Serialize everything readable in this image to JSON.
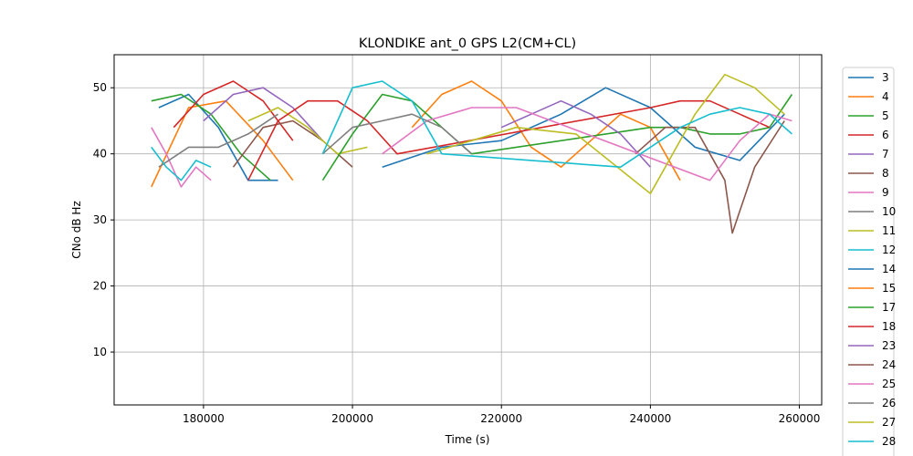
{
  "chart_data": {
    "type": "line",
    "title": "KLONDIKE ant_0 GPS L2(CM+CL)",
    "xlabel": "Time (s)",
    "ylabel": "CNo dB Hz",
    "xlim": [
      168000,
      263000
    ],
    "ylim": [
      2,
      55
    ],
    "xticks": [
      180000,
      200000,
      220000,
      240000,
      260000
    ],
    "yticks": [
      10,
      20,
      30,
      40,
      50
    ],
    "grid": true,
    "legend_position": "outside-right",
    "series": [
      {
        "name": "3",
        "color": "#1f77b4",
        "x": [
          174000,
          178000,
          182000,
          186000,
          190000
        ],
        "y": [
          47,
          49,
          44,
          36,
          36
        ]
      },
      {
        "name": "4",
        "color": "#ff7f0e",
        "x": [
          173000,
          178000,
          183000,
          188000,
          192000
        ],
        "y": [
          35,
          47,
          48,
          42,
          36
        ]
      },
      {
        "name": "5",
        "color": "#2ca02c",
        "x": [
          173000,
          177000,
          181000,
          185000,
          189000
        ],
        "y": [
          48,
          49,
          46,
          40,
          36
        ]
      },
      {
        "name": "6",
        "color": "#d62728",
        "x": [
          176000,
          180000,
          184000,
          188000,
          192000
        ],
        "y": [
          44,
          49,
          51,
          48,
          42
        ]
      },
      {
        "name": "7",
        "color": "#9467bd",
        "x": [
          180000,
          184000,
          188000,
          192000,
          196000
        ],
        "y": [
          45,
          49,
          50,
          47,
          42
        ]
      },
      {
        "name": "8",
        "color": "#8c564b",
        "x": [
          184000,
          188000,
          192000,
          196000,
          200000
        ],
        "y": [
          38,
          44,
          45,
          42,
          38
        ]
      },
      {
        "name": "9",
        "color": "#e377c2",
        "x": [
          173000,
          175000,
          177000,
          179000,
          181000
        ],
        "y": [
          44,
          40,
          35,
          38,
          36
        ]
      },
      {
        "name": "10",
        "color": "#7f7f7f",
        "x": [
          174000,
          178000,
          182000,
          186000,
          190000
        ],
        "y": [
          38,
          41,
          41,
          43,
          46
        ]
      },
      {
        "name": "11",
        "color": "#bcbd22",
        "x": [
          186000,
          190000,
          194000,
          198000,
          202000
        ],
        "y": [
          45,
          47,
          44,
          40,
          41
        ]
      },
      {
        "name": "12",
        "color": "#17becf",
        "x": [
          173000,
          175000,
          177000,
          179000,
          181000
        ],
        "y": [
          41,
          38,
          36,
          39,
          38
        ]
      },
      {
        "name": "14",
        "color": "#1f77b4",
        "x": [
          204000,
          212000,
          220000,
          228000,
          234000,
          240000,
          246000,
          252000,
          258000
        ],
        "y": [
          38,
          41,
          42,
          46,
          50,
          47,
          41,
          39,
          46
        ]
      },
      {
        "name": "15",
        "color": "#ff7f0e",
        "x": [
          208000,
          212000,
          216000,
          220000,
          224000,
          228000,
          232000,
          236000,
          240000,
          244000
        ],
        "y": [
          44,
          49,
          51,
          48,
          41,
          38,
          42,
          46,
          44,
          36
        ]
      },
      {
        "name": "17",
        "color": "#2ca02c",
        "x": [
          196000,
          200000,
          204000,
          208000,
          212000,
          216000,
          240000,
          244000,
          248000,
          252000,
          256000,
          259000
        ],
        "y": [
          36,
          43,
          49,
          48,
          44,
          40,
          44,
          44,
          43,
          43,
          44,
          49
        ]
      },
      {
        "name": "18",
        "color": "#d62728",
        "x": [
          186000,
          190000,
          194000,
          198000,
          202000,
          206000,
          240000,
          244000,
          248000,
          252000,
          256000
        ],
        "y": [
          36,
          45,
          48,
          48,
          45,
          40,
          47,
          48,
          48,
          46,
          44
        ]
      },
      {
        "name": "23",
        "color": "#9467bd",
        "x": [
          220000,
          224000,
          228000,
          232000,
          236000,
          240000
        ],
        "y": [
          44,
          46,
          48,
          46,
          43,
          38
        ]
      },
      {
        "name": "24",
        "color": "#8c564b",
        "x": [
          238000,
          242000,
          246000,
          248000,
          250000,
          251000,
          254000,
          258000
        ],
        "y": [
          40,
          44,
          44,
          40,
          36,
          28,
          38,
          45
        ]
      },
      {
        "name": "25",
        "color": "#e377c2",
        "x": [
          204000,
          210000,
          216000,
          222000,
          248000,
          252000,
          256000,
          259000
        ],
        "y": [
          40,
          45,
          47,
          47,
          36,
          42,
          46,
          45
        ]
      },
      {
        "name": "26",
        "color": "#7f7f7f",
        "x": [
          196000,
          200000,
          204000,
          208000,
          212000,
          216000
        ],
        "y": [
          40,
          44,
          45,
          46,
          44,
          40
        ]
      },
      {
        "name": "27",
        "color": "#bcbd22",
        "x": [
          210000,
          216000,
          222000,
          230000,
          240000,
          246000,
          250000,
          254000,
          258000
        ],
        "y": [
          40,
          42,
          44,
          43,
          34,
          46,
          52,
          50,
          46
        ]
      },
      {
        "name": "28",
        "color": "#17becf",
        "x": [
          196000,
          200000,
          204000,
          208000,
          212000,
          236000,
          240000,
          244000,
          248000,
          252000,
          256000,
          259000
        ],
        "y": [
          40,
          50,
          51,
          48,
          40,
          38,
          41,
          44,
          46,
          47,
          46,
          43
        ]
      }
    ]
  }
}
